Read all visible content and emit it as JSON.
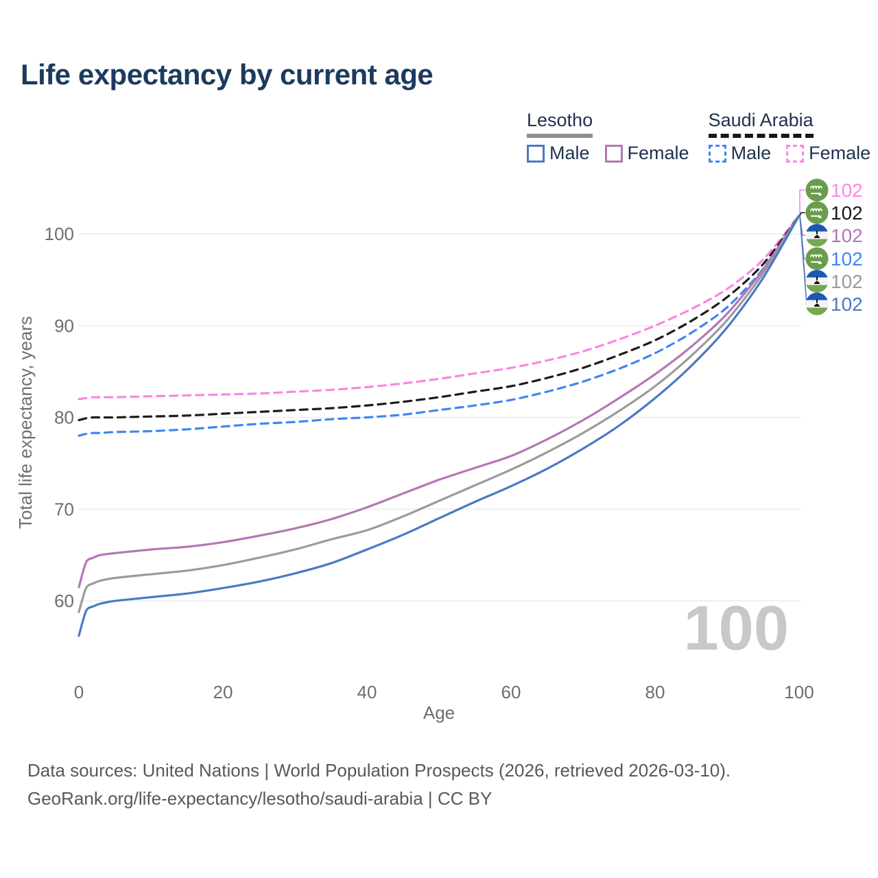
{
  "page": {
    "title": "Life expectancy by current age",
    "background": "#ffffff"
  },
  "legend": {
    "groups": [
      {
        "id": "lesotho",
        "label": "Lesotho",
        "line_style": "solid",
        "underline_color": "#8d8d8d",
        "items": [
          {
            "label": "Male",
            "color": "#4a79c4",
            "dashed": false
          },
          {
            "label": "Female",
            "color": "#b377b5",
            "dashed": false
          }
        ]
      },
      {
        "id": "saudi-arabia",
        "label": "Saudi Arabia",
        "line_style": "dashed",
        "underline_color": "#161616",
        "items": [
          {
            "label": "Male",
            "color": "#3f86f2",
            "dashed": true
          },
          {
            "label": "Female",
            "color": "#fb86e4",
            "dashed": true
          }
        ]
      }
    ]
  },
  "chart_data": {
    "type": "line",
    "title": "Life expectancy by current age",
    "xlabel": "Age",
    "ylabel": "Total life expectancy, years",
    "xlim": [
      0,
      100
    ],
    "ylim": [
      54,
      106
    ],
    "xticks": [
      0,
      20,
      40,
      60,
      80,
      100
    ],
    "yticks": [
      60,
      70,
      80,
      90,
      100
    ],
    "grid": "horizontal",
    "legend_position": "top-right",
    "age_counter": "100",
    "x": [
      0,
      1,
      2,
      3,
      5,
      10,
      15,
      20,
      25,
      30,
      35,
      40,
      45,
      50,
      55,
      60,
      65,
      70,
      75,
      80,
      85,
      90,
      95,
      100
    ],
    "series": [
      {
        "id": "saudi-arabia-female",
        "name": "Saudi Arabia Female",
        "country": "saudi-arabia",
        "sex": "female",
        "color": "#fb86e4",
        "dashed": true,
        "values": [
          82.0,
          82.1,
          82.2,
          82.2,
          82.2,
          82.3,
          82.4,
          82.5,
          82.6,
          82.8,
          83.0,
          83.3,
          83.7,
          84.2,
          84.8,
          85.4,
          86.2,
          87.2,
          88.5,
          90.0,
          91.8,
          94.0,
          97.2,
          102
        ]
      },
      {
        "id": "saudi-arabia-total",
        "name": "Saudi Arabia",
        "country": "saudi-arabia",
        "sex": "total",
        "color": "#1b1b1b",
        "dashed": true,
        "values": [
          79.7,
          79.9,
          80.0,
          80.0,
          80.0,
          80.1,
          80.2,
          80.4,
          80.6,
          80.8,
          81.0,
          81.3,
          81.7,
          82.2,
          82.8,
          83.4,
          84.3,
          85.4,
          86.8,
          88.4,
          90.5,
          93.1,
          96.7,
          102
        ]
      },
      {
        "id": "saudi-arabia-male",
        "name": "Saudi Arabia Male",
        "country": "saudi-arabia",
        "sex": "male",
        "color": "#3f86f2",
        "dashed": true,
        "values": [
          78.0,
          78.2,
          78.3,
          78.3,
          78.4,
          78.5,
          78.7,
          79.0,
          79.3,
          79.5,
          79.8,
          80.0,
          80.3,
          80.8,
          81.3,
          81.9,
          82.8,
          83.9,
          85.3,
          87.0,
          89.2,
          92.0,
          96.2,
          102
        ]
      },
      {
        "id": "lesotho-female",
        "name": "Lesotho Female",
        "country": "lesotho",
        "sex": "female",
        "color": "#b377b5",
        "dashed": false,
        "values": [
          61.5,
          64.2,
          64.7,
          65.0,
          65.2,
          65.6,
          65.9,
          66.4,
          67.1,
          67.9,
          68.9,
          70.2,
          71.7,
          73.2,
          74.5,
          75.8,
          77.6,
          79.7,
          82.1,
          84.7,
          87.7,
          91.3,
          96.1,
          102
        ]
      },
      {
        "id": "lesotho-total",
        "name": "Lesotho",
        "country": "lesotho",
        "sex": "total",
        "color": "#9b9b9b",
        "dashed": false,
        "values": [
          58.8,
          61.4,
          61.9,
          62.2,
          62.5,
          62.9,
          63.3,
          63.9,
          64.7,
          65.6,
          66.7,
          67.7,
          69.2,
          70.9,
          72.6,
          74.3,
          76.2,
          78.3,
          80.7,
          83.4,
          86.7,
          90.6,
          95.7,
          102
        ]
      },
      {
        "id": "lesotho-male",
        "name": "Lesotho Male",
        "country": "lesotho",
        "sex": "male",
        "color": "#4a79c4",
        "dashed": false,
        "values": [
          56.2,
          58.9,
          59.4,
          59.7,
          60.0,
          60.4,
          60.8,
          61.4,
          62.1,
          63.0,
          64.1,
          65.6,
          67.2,
          69.0,
          70.8,
          72.5,
          74.4,
          76.6,
          79.1,
          82.1,
          85.6,
          89.8,
          95.2,
          102
        ]
      }
    ],
    "end_labels": [
      {
        "series": "saudi-arabia-female",
        "country": "saudi-arabia",
        "value": "102",
        "color": "#fb86e4"
      },
      {
        "series": "saudi-arabia-total",
        "country": "saudi-arabia",
        "value": "102",
        "color": "#1a1a1a"
      },
      {
        "series": "lesotho-female",
        "country": "lesotho",
        "value": "102",
        "color": "#b377b5"
      },
      {
        "series": "saudi-arabia-male",
        "country": "saudi-arabia",
        "value": "102",
        "color": "#3f86f2"
      },
      {
        "series": "lesotho-total",
        "country": "lesotho",
        "value": "102",
        "color": "#9b9b9b"
      },
      {
        "series": "lesotho-male",
        "country": "lesotho",
        "value": "102",
        "color": "#4a79c4"
      }
    ]
  },
  "footer": {
    "line1": "Data sources: United Nations | World Population Prospects (2026, retrieved 2026-03-10).",
    "line2": "GeoRank.org/life-expectancy/lesotho/saudi-arabia | CC BY"
  }
}
